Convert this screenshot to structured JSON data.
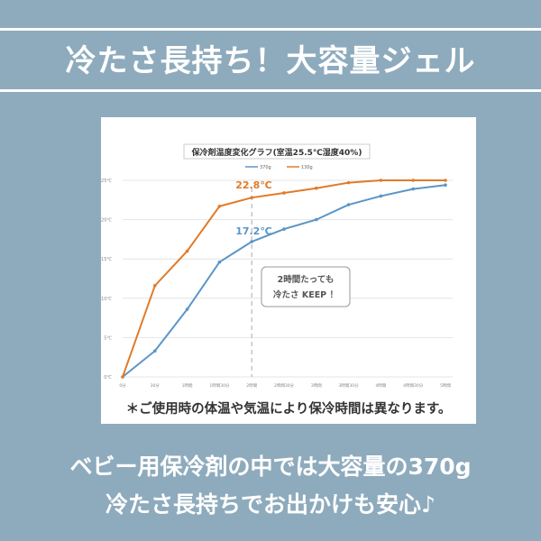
{
  "title": "冷たさ長持ち！大容量ジェル",
  "note": "＊ご使用時の体温や気温により保冷時間は異なります。",
  "bottom_line1": "ベビー用保冷剤の中では大容量の370g",
  "bottom_line2": "冷たさ長持ちでお出かけも安心♪",
  "chart_data": {
    "type": "line",
    "title": "保冷剤温度変化グラフ(室温25.5℃湿度40%)",
    "categories": [
      "0分",
      "30分",
      "1時間",
      "1時間30分",
      "2時間",
      "2時間30分",
      "3時間",
      "3時間30分",
      "4時間",
      "4時間30分",
      "5時間"
    ],
    "yticks": [
      "0℃",
      "5℃",
      "10℃",
      "15℃",
      "20℃",
      "25℃"
    ],
    "ylim": [
      0,
      25
    ],
    "grid": true,
    "legend": "top",
    "series": [
      {
        "name": "370g",
        "color": "#5b95c7",
        "values": [
          0,
          3.3,
          8.6,
          14.6,
          17.2,
          18.8,
          20.0,
          21.9,
          23.0,
          23.9,
          24.4
        ]
      },
      {
        "name": "130g",
        "color": "#e07b2a",
        "values": [
          0,
          11.6,
          16.0,
          21.7,
          22.8,
          23.4,
          24.0,
          24.7,
          25,
          25,
          25
        ]
      }
    ],
    "annotations": {
      "orange_label": "22.8℃",
      "blue_label": "17.2℃",
      "callout_line1": "2時間たっても",
      "callout_line2": "冷たさ KEEP ！"
    }
  }
}
